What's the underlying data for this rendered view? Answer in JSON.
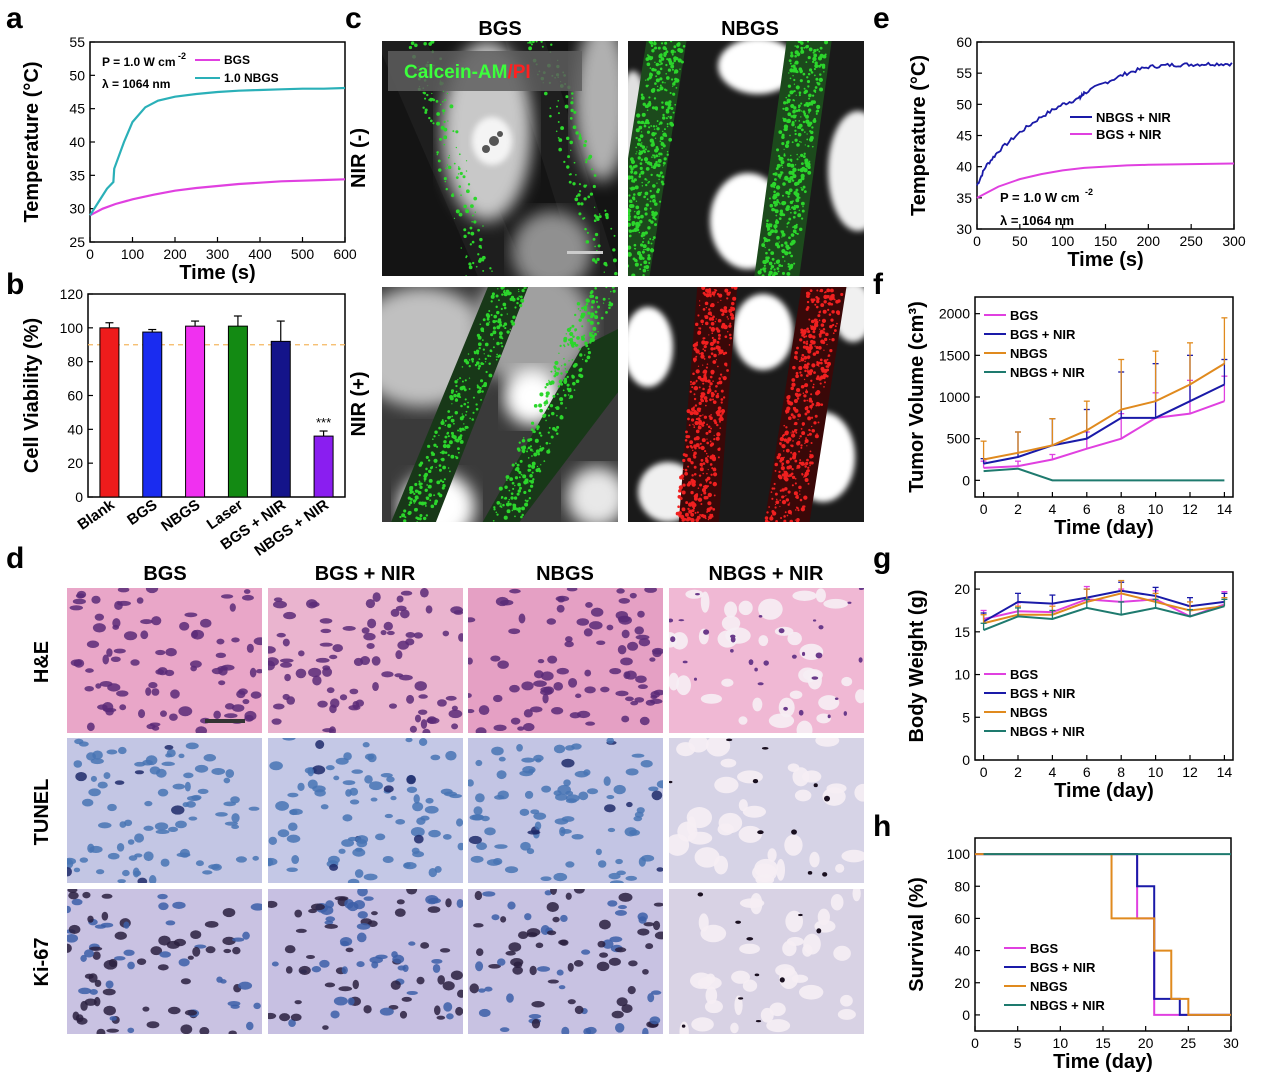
{
  "panels": {
    "a": "a",
    "b": "b",
    "c": "c",
    "d": "d",
    "e": "e",
    "f": "f",
    "g": "g",
    "h": "h"
  },
  "colors": {
    "bgs": "#e040e0",
    "nbgs_a": "#2ab0b8",
    "bgs_nir": "#1a1aa8",
    "nbgs": "#e08a1e",
    "nbgs_nir": "#1e7a6e",
    "blank": "#ee1c1c",
    "bar_bgs": "#1a2cf0",
    "bar_nbgs": "#f030f0",
    "bar_laser": "#138a13",
    "bar_bgsnir": "#14148a",
    "bar_nbgsnir": "#8a1ef0",
    "dashed": "#f5b860"
  },
  "panel_c": {
    "headers": [
      "BGS",
      "NBGS"
    ],
    "rows": [
      "NIR (-)",
      "NIR (+)"
    ],
    "stain": {
      "part1": "Calcein-AM",
      "sep": "/",
      "part2": "PI"
    }
  },
  "panel_d": {
    "headers": [
      "BGS",
      "BGS + NIR",
      "NBGS",
      "NBGS + NIR"
    ],
    "rows": [
      "H&E",
      "TUNEL",
      "Ki-67"
    ]
  },
  "chart_data": [
    {
      "id": "a",
      "type": "line",
      "xlabel": "Time (s)",
      "ylabel": "Temperature (°C)",
      "xlim": [
        0,
        600
      ],
      "ylim": [
        25,
        55
      ],
      "xticks": [
        0,
        100,
        200,
        300,
        400,
        500,
        600
      ],
      "yticks": [
        25,
        30,
        35,
        40,
        45,
        50,
        55
      ],
      "annotations": [
        "P = 1.0 W cm",
        "-2",
        "λ = 1064 nm"
      ],
      "legend": [
        "BGS",
        "1.0 NBGS"
      ],
      "series": [
        {
          "name": "BGS",
          "x": [
            0,
            30,
            60,
            100,
            150,
            200,
            250,
            300,
            350,
            400,
            450,
            500,
            550,
            600
          ],
          "y": [
            29,
            30,
            30.7,
            31.4,
            32.1,
            32.7,
            33.1,
            33.4,
            33.7,
            33.9,
            34.1,
            34.2,
            34.3,
            34.4
          ]
        },
        {
          "name": "1.0 NBGS",
          "x": [
            0,
            20,
            40,
            55,
            57,
            80,
            100,
            130,
            160,
            200,
            250,
            300,
            350,
            400,
            450,
            500,
            550,
            600
          ],
          "y": [
            29,
            31,
            33,
            34,
            36,
            40,
            43,
            45.2,
            46.2,
            46.8,
            47.2,
            47.5,
            47.7,
            47.8,
            47.9,
            48,
            48,
            48.1
          ]
        }
      ]
    },
    {
      "id": "b",
      "type": "bar",
      "ylabel": "Cell Viability (%)",
      "ylim": [
        0,
        120
      ],
      "yticks": [
        0,
        20,
        40,
        60,
        80,
        100,
        120
      ],
      "categories": [
        "Blank",
        "BGS",
        "NBGS",
        "Laser",
        "BGS + NIR",
        "NBGS + NIR"
      ],
      "values": [
        100,
        97.5,
        101,
        101,
        92,
        36
      ],
      "errors": [
        3,
        1.5,
        3,
        6,
        12,
        3
      ],
      "reference_line": 90,
      "significance": "***"
    },
    {
      "id": "e",
      "type": "line",
      "xlabel": "Time (s)",
      "ylabel": "Temperature (°C)",
      "xlim": [
        0,
        300
      ],
      "ylim": [
        30,
        60
      ],
      "xticks": [
        0,
        50,
        100,
        150,
        200,
        250,
        300
      ],
      "yticks": [
        30,
        35,
        40,
        45,
        50,
        55,
        60
      ],
      "annotations": [
        "P = 1.0 W cm",
        "-2",
        "λ = 1064 nm"
      ],
      "legend": [
        "NBGS + NIR",
        "BGS + NIR"
      ],
      "series": [
        {
          "name": "NBGS + NIR",
          "x": [
            0,
            10,
            25,
            50,
            75,
            100,
            120,
            125,
            150,
            175,
            200,
            225,
            250,
            275,
            300
          ],
          "y": [
            37,
            40,
            42.5,
            45.5,
            48,
            50,
            51,
            51.8,
            53.5,
            55,
            56,
            56.3,
            56.4,
            56.5,
            56.5
          ]
        },
        {
          "name": "BGS + NIR",
          "x": [
            0,
            25,
            50,
            75,
            100,
            125,
            150,
            175,
            200,
            250,
            300
          ],
          "y": [
            35,
            36.8,
            38,
            38.8,
            39.4,
            39.8,
            40,
            40.2,
            40.3,
            40.4,
            40.5
          ]
        }
      ]
    },
    {
      "id": "f",
      "type": "line",
      "xlabel": "Time (day)",
      "ylabel": "Tumor Volume (cm³)",
      "xlim": [
        -0.5,
        14.5
      ],
      "ylim": [
        -200,
        2200
      ],
      "xticks": [
        0,
        2,
        4,
        6,
        8,
        10,
        12,
        14
      ],
      "yticks": [
        0,
        500,
        1000,
        1500,
        2000
      ],
      "series": [
        {
          "name": "BGS",
          "x": [
            0,
            2,
            4,
            6,
            8,
            10,
            12,
            14
          ],
          "y": [
            150,
            170,
            250,
            380,
            500,
            750,
            800,
            950
          ],
          "err": [
            80,
            60,
            60,
            200,
            300,
            300,
            400,
            300
          ]
        },
        {
          "name": "BGS + NIR",
          "x": [
            0,
            2,
            4,
            6,
            8,
            10,
            12,
            14
          ],
          "y": [
            200,
            280,
            420,
            500,
            750,
            750,
            950,
            1150
          ],
          "err": [
            60,
            300,
            320,
            350,
            550,
            650,
            550,
            300
          ]
        },
        {
          "name": "NBGS",
          "x": [
            0,
            2,
            4,
            6,
            8,
            10,
            12,
            14
          ],
          "y": [
            250,
            330,
            420,
            600,
            850,
            950,
            1150,
            1400
          ],
          "err": [
            220,
            250,
            320,
            350,
            600,
            600,
            500,
            550
          ]
        },
        {
          "name": "NBGS + NIR",
          "x": [
            0,
            2,
            4,
            6,
            8,
            10,
            12,
            14
          ],
          "y": [
            110,
            140,
            0,
            0,
            0,
            0,
            0,
            0
          ],
          "err": [
            0,
            0,
            0,
            0,
            0,
            0,
            0,
            0
          ]
        }
      ]
    },
    {
      "id": "g",
      "type": "line",
      "xlabel": "Time (day)",
      "ylabel": "Body Weight (g)",
      "xlim": [
        -0.5,
        14.5
      ],
      "ylim": [
        0,
        22
      ],
      "xticks": [
        0,
        2,
        4,
        6,
        8,
        10,
        12,
        14
      ],
      "yticks": [
        0,
        5,
        10,
        15,
        20
      ],
      "series": [
        {
          "name": "BGS",
          "x": [
            0,
            2,
            4,
            6,
            8,
            10,
            12,
            14
          ],
          "y": [
            16.5,
            17.4,
            17.3,
            18.8,
            18.5,
            18.8,
            16.8,
            18.2
          ],
          "err": [
            1,
            1,
            1,
            1.5,
            1.5,
            1,
            1.2,
            1.5
          ]
        },
        {
          "name": "BGS + NIR",
          "x": [
            0,
            2,
            4,
            6,
            8,
            10,
            12,
            14
          ],
          "y": [
            16.2,
            18.5,
            18.3,
            19,
            19.8,
            19.2,
            18,
            18.5
          ],
          "err": [
            1,
            1,
            1,
            1,
            1,
            1,
            1,
            1
          ]
        },
        {
          "name": "NBGS",
          "x": [
            0,
            2,
            4,
            6,
            8,
            10,
            12,
            14
          ],
          "y": [
            16,
            17,
            17,
            18.5,
            19.5,
            18.5,
            17.5,
            18
          ],
          "err": [
            1,
            1,
            1,
            1.5,
            1.5,
            1,
            1,
            1
          ]
        },
        {
          "name": "NBGS + NIR",
          "x": [
            0,
            2,
            4,
            6,
            8,
            10,
            12,
            14
          ],
          "y": [
            15.2,
            16.8,
            16.5,
            17.8,
            17,
            17.8,
            16.8,
            18
          ],
          "err": [
            0.8,
            1,
            1,
            1,
            1.5,
            1,
            0.8,
            0.8
          ]
        }
      ]
    },
    {
      "id": "h",
      "type": "line",
      "xlabel": "Time (day)",
      "ylabel": "Survival (%)",
      "xlim": [
        0,
        30
      ],
      "ylim": [
        -10,
        110
      ],
      "xticks": [
        0,
        5,
        10,
        15,
        20,
        25,
        30
      ],
      "yticks": [
        0,
        20,
        40,
        60,
        80,
        100
      ],
      "series": [
        {
          "name": "BGS",
          "x": [
            0,
            19,
            19,
            21,
            21,
            30
          ],
          "y": [
            100,
            100,
            60,
            60,
            0,
            0
          ]
        },
        {
          "name": "BGS + NIR",
          "x": [
            0,
            19,
            19,
            20,
            20,
            21,
            21,
            23,
            23,
            24,
            24,
            30
          ],
          "y": [
            100,
            100,
            80,
            80,
            80,
            80,
            10,
            10,
            10,
            10,
            0,
            0
          ]
        },
        {
          "name": "NBGS",
          "x": [
            0,
            16,
            16,
            20,
            20,
            21,
            21,
            23,
            23,
            24,
            24,
            25,
            25,
            30
          ],
          "y": [
            100,
            100,
            60,
            60,
            60,
            60,
            40,
            40,
            10,
            10,
            10,
            10,
            0,
            0
          ]
        },
        {
          "name": "NBGS + NIR",
          "x": [
            1,
            30
          ],
          "y": [
            100,
            100
          ]
        }
      ]
    }
  ]
}
